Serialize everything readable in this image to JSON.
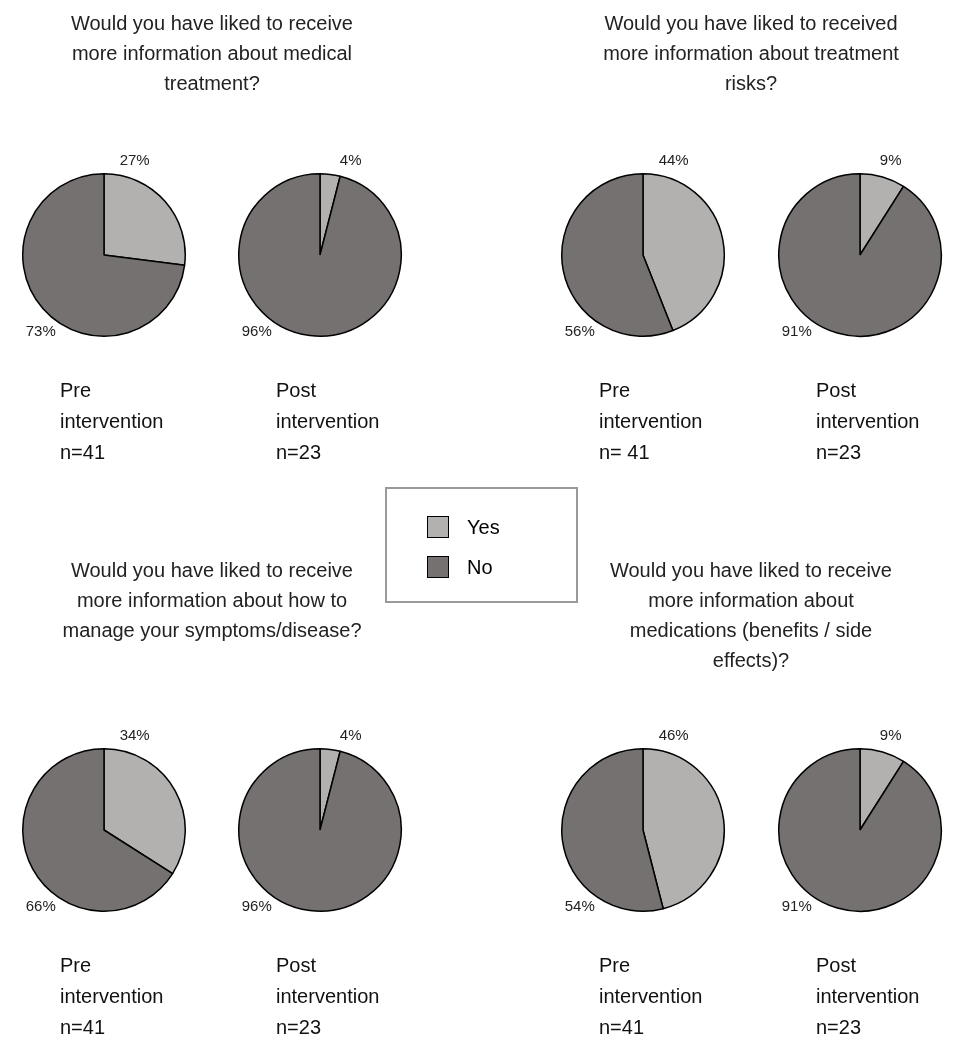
{
  "chart_data": [
    {
      "type": "pie",
      "title": "Would you have liked to receive more information about medical treatment?",
      "categories": [
        "Yes",
        "No"
      ],
      "values": [
        27,
        73
      ],
      "value_labels": [
        "27%",
        "73%"
      ],
      "colors": [
        "#b3b0b0",
        "#767171"
      ],
      "xlabel": "Pre\nintervention\nn=41",
      "legend": "bottom right"
    },
    {
      "type": "pie",
      "values": [
        4,
        96
      ],
      "value_labels": [
        "4%",
        "96%"
      ],
      "colors": [
        "#b3b0b0",
        "#767171"
      ],
      "xlabel": "Post\nintervention\nn=23"
    },
    {
      "type": "pie",
      "title": "Would you have liked to received more information about treatment risks?",
      "values": [
        44,
        56
      ],
      "value_labels": [
        "44%",
        "56%"
      ],
      "colors": [
        "#b3b0b0",
        "#767171"
      ],
      "xlabel": "Pre\nintervention\nn= 41"
    },
    {
      "type": "pie",
      "values": [
        9,
        91
      ],
      "value_labels": [
        "9%",
        "91%"
      ],
      "colors": [
        "#b3b0b0",
        "#767171"
      ],
      "xlabel": "Post\nintervention\nn=23"
    },
    {
      "type": "pie",
      "title": "Would you have liked  to receive more information about how to manage your symptoms/disease?",
      "values": [
        34,
        66
      ],
      "value_labels": [
        "34%",
        "66%"
      ],
      "colors": [
        "#b3b0b0",
        "#767171"
      ],
      "xlabel": "Pre\nintervention\nn=41"
    },
    {
      "type": "pie",
      "values": [
        4,
        96
      ],
      "value_labels": [
        "4%",
        "96%"
      ],
      "colors": [
        "#b3b0b0",
        "#767171"
      ],
      "xlabel": "Post\nintervention\nn=23"
    },
    {
      "type": "pie",
      "title": "Would you have liked to receive more information about medications (benefits / side effects)?",
      "values": [
        46,
        54
      ],
      "value_labels": [
        "46%",
        "54%"
      ],
      "colors": [
        "#b3b0b0",
        "#767171"
      ],
      "xlabel": "Pre\nintervention\nn=41"
    },
    {
      "type": "pie",
      "values": [
        9,
        91
      ],
      "value_labels": [
        "9%",
        "91%"
      ],
      "colors": [
        "#b3b0b0",
        "#767171"
      ],
      "xlabel": "Post\nintervention\nn=23"
    }
  ]
}
